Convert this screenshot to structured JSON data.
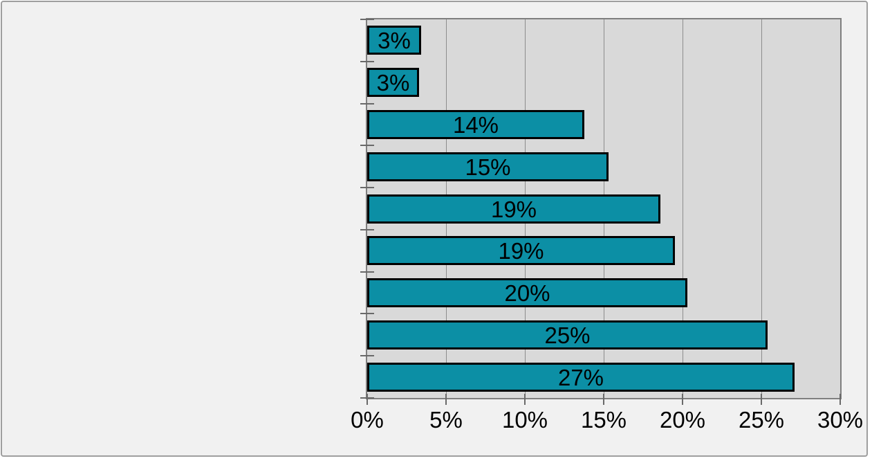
{
  "chart_data": {
    "type": "bar",
    "orientation": "horizontal",
    "title": "",
    "legend": false,
    "grid": true,
    "bars": {
      "labels": [
        "3%",
        "3%",
        "14%",
        "15%",
        "19%",
        "19%",
        "20%",
        "25%",
        "27%"
      ],
      "values": [
        3,
        3,
        14,
        15,
        19,
        19,
        20,
        25,
        27
      ],
      "lengths_pct_estimate": [
        3.4,
        3.3,
        13.75,
        15.3,
        18.6,
        19.5,
        20.3,
        25.4,
        27.1
      ],
      "count": 9,
      "category_labels_visible": false
    },
    "x_axis": {
      "min": 0,
      "max": 30,
      "step": 5,
      "tick_labels": [
        "0%",
        "5%",
        "10%",
        "15%",
        "20%",
        "25%",
        "30%"
      ]
    },
    "colors": {
      "bar_fill": "#0C8FA5",
      "bar_border": "#000000",
      "plot_background": "#D9D9D9",
      "plot_border": "#7F7F7F",
      "gridline": "#8C8C8C",
      "tick": "#696969",
      "label_text": "#000000",
      "widget_background": "#F1F1F1",
      "widget_border": "#9E9E9E"
    }
  }
}
